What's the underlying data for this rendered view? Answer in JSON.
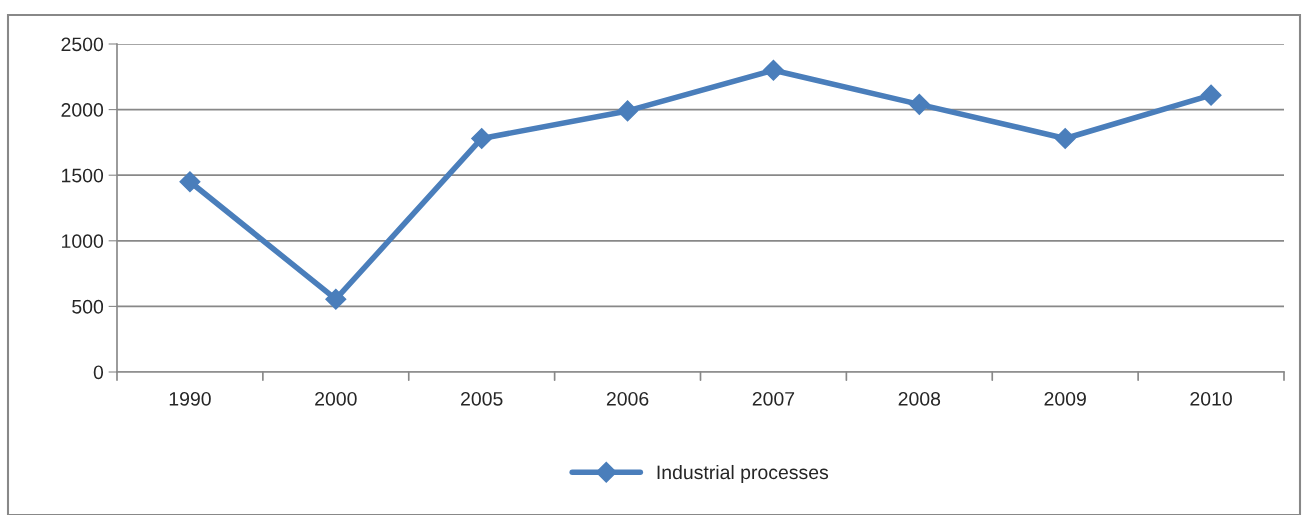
{
  "chart_data": {
    "type": "line",
    "categories": [
      "1990",
      "2000",
      "2005",
      "2006",
      "2007",
      "2008",
      "2009",
      "2010"
    ],
    "series": [
      {
        "name": "Industrial processes",
        "color": "#4a7ebb",
        "values": [
          1450,
          555,
          1780,
          1990,
          2300,
          2040,
          1780,
          2110
        ]
      }
    ],
    "ylim": [
      0,
      2500
    ],
    "yticks": [
      0,
      500,
      1000,
      1500,
      2000,
      2500
    ],
    "grid": "y",
    "legend": "bottom",
    "marker": "diamond",
    "line_style": "solid"
  }
}
